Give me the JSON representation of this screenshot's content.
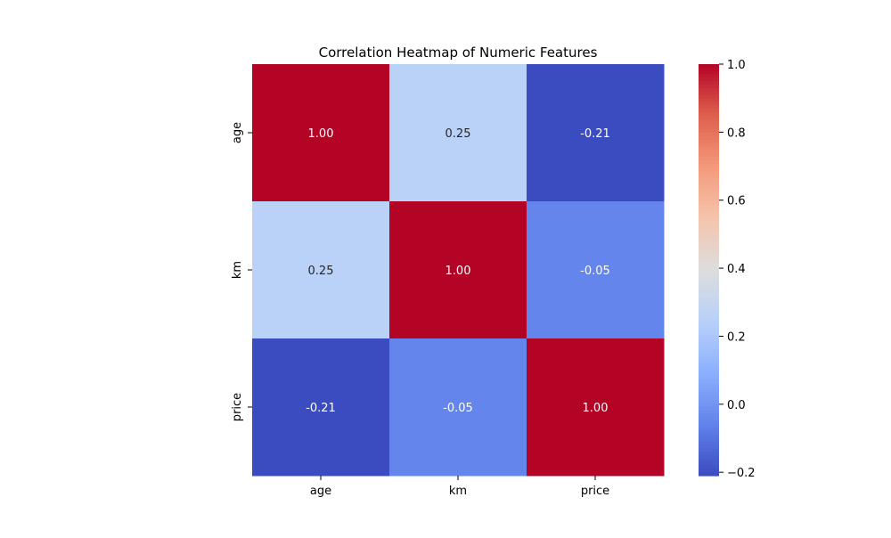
{
  "chart_data": {
    "type": "heatmap",
    "title": "Correlation Heatmap of Numeric Features",
    "rows": [
      "age",
      "km",
      "price"
    ],
    "columns": [
      "age",
      "km",
      "price"
    ],
    "values": [
      [
        1.0,
        0.25,
        -0.21
      ],
      [
        0.25,
        1.0,
        -0.05
      ],
      [
        -0.21,
        -0.05,
        1.0
      ]
    ],
    "value_format": "0.00",
    "colormap": "coolwarm",
    "colorbar": {
      "vmin": -0.21,
      "vmax": 1.0,
      "ticks": [
        1.0,
        0.8,
        0.6,
        0.4,
        0.2,
        0.0,
        -0.2
      ],
      "tick_labels": [
        "1.0",
        "0.8",
        "0.6",
        "0.4",
        "0.2",
        "0.0",
        "−0.2"
      ]
    },
    "xlabel": "",
    "ylabel": ""
  }
}
